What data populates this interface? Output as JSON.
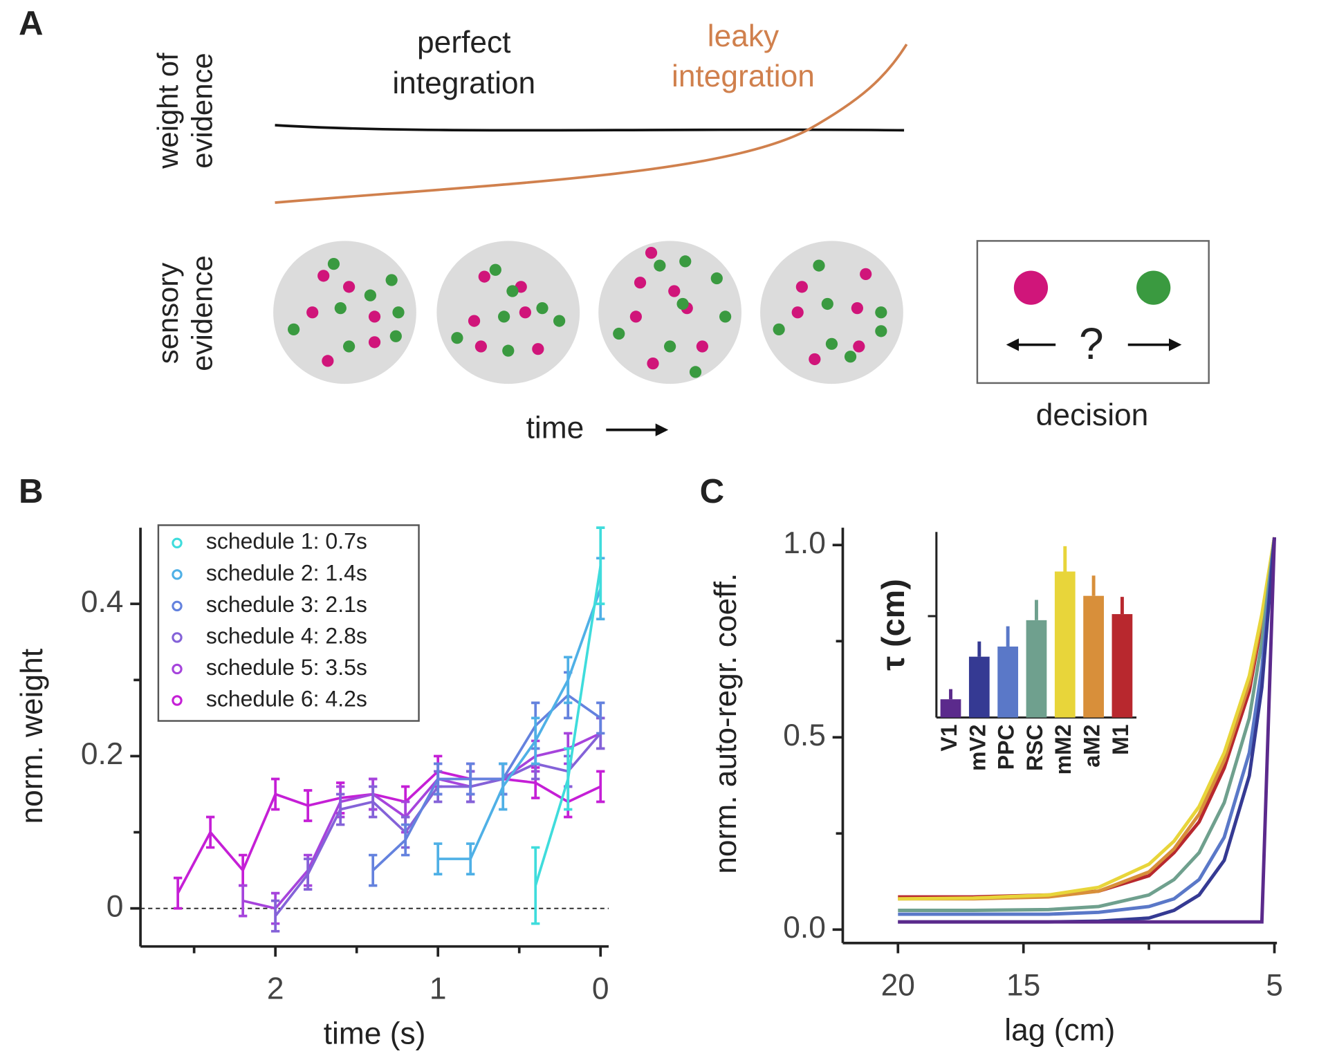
{
  "panel_a": {
    "label": "A",
    "weight_label": [
      "weight of",
      "evidence"
    ],
    "perfect": [
      "perfect",
      "integration"
    ],
    "leaky": [
      "leaky",
      "integration"
    ],
    "sensory_label": [
      "sensory",
      "evidence"
    ],
    "time": "time",
    "question": "?",
    "decision": "decision"
  },
  "chart_data": [
    {
      "type": "line",
      "label": "B",
      "xlabel": "time (s)",
      "ylabel": "norm. weight",
      "xlim": [
        2.83,
        -0.05
      ],
      "xticks": [
        2,
        1,
        0
      ],
      "xminor_ticks": [
        2.5,
        1.5,
        0.5
      ],
      "ylim": [
        -0.05,
        0.5
      ],
      "yticks": [
        0,
        0.2,
        0.4
      ],
      "yminor_ticks": [
        0.1,
        0.3
      ],
      "hline": 0,
      "legend": "upper left",
      "series": [
        {
          "name": "schedule 1: 0.7s",
          "color": "#3fdcdc",
          "x": [
            0.4,
            0.2,
            0
          ],
          "values": [
            0.03,
            0.17,
            0.45
          ],
          "errors": [
            0.05,
            0.04,
            0.05
          ]
        },
        {
          "name": "schedule 2: 1.4s",
          "color": "#4fb0e6",
          "x": [
            1,
            0.8,
            0.6,
            0.4,
            0.2,
            0
          ],
          "values": [
            0.065,
            0.065,
            0.16,
            0.22,
            0.3,
            0.42
          ],
          "errors": [
            0.02,
            0.02,
            0.03,
            0.03,
            0.03,
            0.04
          ]
        },
        {
          "name": "schedule 3: 2.1s",
          "color": "#6482de",
          "x": [
            1.4,
            1.2,
            1,
            0.8,
            0.6,
            0.4,
            0.2,
            0
          ],
          "values": [
            0.05,
            0.09,
            0.17,
            0.17,
            0.17,
            0.24,
            0.28,
            0.25
          ],
          "errors": [
            0.02,
            0.02,
            0.02,
            0.02,
            0.02,
            0.03,
            0.03,
            0.02
          ]
        },
        {
          "name": "schedule 4: 2.8s",
          "color": "#8462d8",
          "x": [
            2,
            1.8,
            1.6,
            1.4,
            1.2,
            1,
            0.8,
            0.6,
            0.4,
            0.2,
            0
          ],
          "values": [
            -0.01,
            0.045,
            0.13,
            0.14,
            0.1,
            0.16,
            0.16,
            0.17,
            0.19,
            0.18,
            0.23
          ],
          "errors": [
            0.02,
            0.02,
            0.02,
            0.02,
            0.02,
            0.02,
            0.02,
            0.02,
            0.02,
            0.02,
            0.02
          ]
        },
        {
          "name": "schedule 5: 3.5s",
          "color": "#a644dc",
          "x": [
            2.2,
            2,
            1.8,
            1.6,
            1.4,
            1.2,
            1,
            0.8,
            0.6,
            0.4,
            0.2,
            0
          ],
          "values": [
            0.01,
            0,
            0.05,
            0.14,
            0.15,
            0.12,
            0.17,
            0.16,
            0.17,
            0.2,
            0.21,
            0.23
          ],
          "errors": [
            0.02,
            0.02,
            0.02,
            0.02,
            0.02,
            0.02,
            0.02,
            0.02,
            0.02,
            0.02,
            0.02,
            0.02
          ]
        },
        {
          "name": "schedule 6: 4.2s",
          "color": "#c51fd6",
          "x": [
            2.6,
            2.4,
            2.2,
            2,
            1.8,
            1.6,
            1.4,
            1.2,
            1,
            0.8,
            0.6,
            0.4,
            0.2,
            0
          ],
          "values": [
            0.02,
            0.1,
            0.05,
            0.15,
            0.135,
            0.145,
            0.15,
            0.14,
            0.18,
            0.17,
            0.17,
            0.165,
            0.14,
            0.16
          ],
          "errors": [
            0.02,
            0.02,
            0.02,
            0.02,
            0.02,
            0.02,
            0.02,
            0.02,
            0.02,
            0.02,
            0.02,
            0.02,
            0.02,
            0.02
          ]
        }
      ]
    },
    {
      "type": "line",
      "label": "C",
      "xlabel": "lag (cm)",
      "ylabel": "norm. auto-regr. coeff.",
      "xlim": [
        22.2,
        4.9
      ],
      "xticks": [
        20,
        15,
        5
      ],
      "xminor_ticks": [
        10
      ],
      "ylim": [
        -0.035,
        1.045
      ],
      "yticks": [
        {
          "value": 0,
          "label": "0.0"
        },
        {
          "value": 0.5,
          "label": "0.5"
        },
        {
          "value": 1,
          "label": "1.0"
        }
      ],
      "yminor_ticks": [
        0.25,
        0.75
      ],
      "x": [
        20,
        17,
        14,
        12,
        10,
        9,
        8,
        7,
        6,
        5.5,
        5
      ],
      "series": [
        {
          "name": "V1",
          "color": "#5b2a8c",
          "values": [
            0.02,
            0.02,
            0.02,
            0.02,
            0.02,
            0.02,
            0.02,
            0.02,
            0.02,
            0.02,
            1.02
          ]
        },
        {
          "name": "mV2",
          "color": "#353a93",
          "values": [
            0.02,
            0.02,
            0.02,
            0.022,
            0.03,
            0.05,
            0.09,
            0.18,
            0.4,
            0.63,
            1.02
          ]
        },
        {
          "name": "PPC",
          "color": "#5a78c8",
          "values": [
            0.04,
            0.04,
            0.04,
            0.045,
            0.06,
            0.08,
            0.13,
            0.24,
            0.46,
            0.68,
            1.02
          ]
        },
        {
          "name": "RSC",
          "color": "#6fa08e",
          "values": [
            0.05,
            0.05,
            0.052,
            0.06,
            0.09,
            0.13,
            0.2,
            0.33,
            0.55,
            0.75,
            1.02
          ]
        },
        {
          "name": "mM2",
          "color": "#e8d53a",
          "values": [
            0.08,
            0.082,
            0.09,
            0.11,
            0.17,
            0.23,
            0.32,
            0.46,
            0.66,
            0.82,
            1.02
          ]
        },
        {
          "name": "aM2",
          "color": "#d88f3a",
          "values": [
            0.08,
            0.08,
            0.085,
            0.1,
            0.15,
            0.21,
            0.3,
            0.44,
            0.64,
            0.81,
            1.02
          ]
        },
        {
          "name": "M1",
          "color": "#b8282e",
          "values": [
            0.085,
            0.085,
            0.09,
            0.1,
            0.14,
            0.2,
            0.28,
            0.42,
            0.62,
            0.8,
            1.02
          ]
        }
      ]
    },
    {
      "type": "bar",
      "ylabel": "τ (cm)",
      "ylim": [
        0,
        1.83
      ],
      "yminor_ticks": [
        1
      ],
      "categories": [
        "V1",
        "mV2",
        "PPC",
        "RSC",
        "mM2",
        "aM2",
        "M1"
      ],
      "values": [
        0.18,
        0.6,
        0.7,
        0.96,
        1.44,
        1.2,
        1.02
      ],
      "errors": [
        0.1,
        0.15,
        0.2,
        0.2,
        0.25,
        0.2,
        0.17
      ],
      "colors": [
        "#5b2a8c",
        "#353a93",
        "#5a78c8",
        "#6fa08e",
        "#e8d53a",
        "#d88f3a",
        "#b8282e"
      ]
    }
  ]
}
